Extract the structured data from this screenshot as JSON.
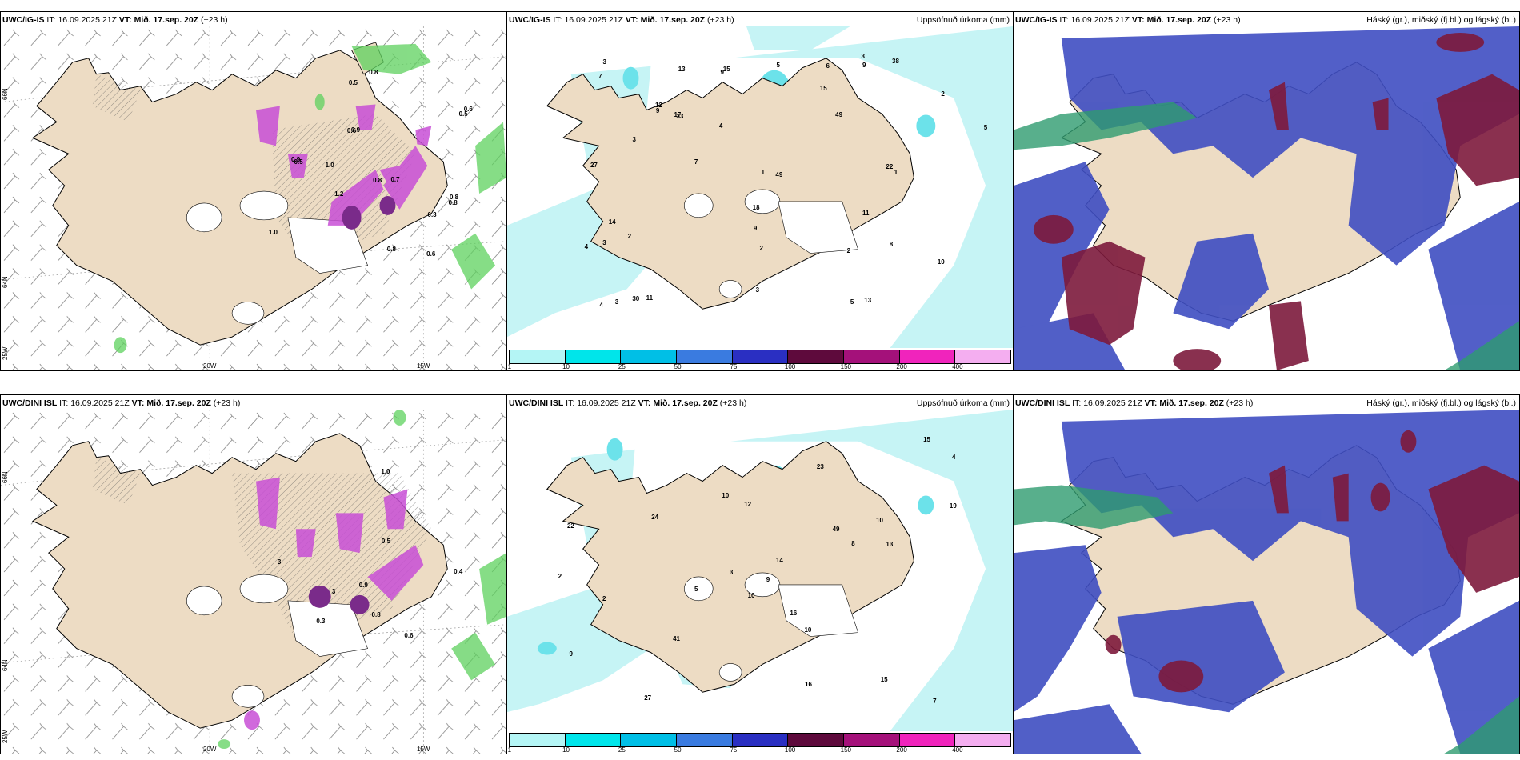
{
  "rows": [
    {
      "model": "UWC/IG-IS",
      "it_label": "IT:",
      "it_value": "16.09.2025 21Z",
      "vt_label": "VT:",
      "vt_value": "Mið. 17.sep. 20Z",
      "lead": "(+23 h)",
      "panels": [
        {
          "right_title": "",
          "values": [
            "0.8",
            "1.0",
            "0.8",
            "1.2",
            "0.9",
            "0.8",
            "0.9",
            "1.0",
            "0.8",
            "0.5",
            "0.3",
            "0.5",
            "0.6",
            "0.6",
            "0.5",
            "0.8",
            "0.6",
            "0.7"
          ]
        },
        {
          "right_title": "Uppsöfnuð úrkoma (mm)",
          "values": [
            "27",
            "9",
            "5",
            "13",
            "14",
            "33",
            "38",
            "49",
            "30",
            "18",
            "13",
            "15",
            "12",
            "22",
            "17",
            "11",
            "9",
            "9",
            "3",
            "11",
            "8",
            "6",
            "7",
            "9",
            "49",
            "10",
            "3",
            "4",
            "5",
            "4",
            "5",
            "3",
            "3",
            "7",
            "2",
            "1",
            "1",
            "15",
            "2",
            "3",
            "3",
            "2",
            "2",
            "4"
          ]
        },
        {
          "right_title": "Háský (gr.), miðský (fj.bl.) og lágský (bl.)",
          "values": []
        }
      ]
    },
    {
      "model": "UWC/DINI ISL",
      "it_label": "IT:",
      "it_value": "16.09.2025 21Z",
      "vt_label": "VT:",
      "vt_value": "Mið. 17.sep. 20Z",
      "lead": "(+23 h)",
      "panels": [
        {
          "right_title": "",
          "values": [
            "0.5",
            "0.4",
            "0.8",
            "1.0",
            "0.9",
            "3",
            "0.6",
            "0.3",
            "3"
          ]
        },
        {
          "right_title": "Uppsöfnuð úrkoma (mm)",
          "values": [
            "24",
            "10",
            "10",
            "4",
            "19",
            "27",
            "41",
            "23",
            "13",
            "15",
            "12",
            "22",
            "16",
            "9",
            "49",
            "10",
            "14",
            "10",
            "16",
            "15",
            "7",
            "8",
            "9",
            "3",
            "2",
            "5",
            "2"
          ]
        },
        {
          "right_title": "Háský (gr.), miðský (fj.bl.) og lágský (bl.)",
          "values": []
        }
      ]
    }
  ],
  "axes": {
    "lat_top": "66N",
    "lat_bottom": "64N",
    "lat_corner": "25W",
    "lon_left": "20W",
    "lon_right": "15W"
  },
  "colorbar": {
    "ticks": [
      "1",
      "10",
      "25",
      "50",
      "75",
      "100",
      "150",
      "200",
      "400"
    ],
    "colors": [
      "#b4f5f5",
      "#00e5ea",
      "#00bfe6",
      "#3a7be0",
      "#2a2fc2",
      "#5e0a3c",
      "#a4117a",
      "#f024bc",
      "#f4aef0"
    ]
  },
  "palette": {
    "land": "#eddcc4",
    "coast": "#000000",
    "precip_light": "#c6f4f5",
    "precip_mid": "#6ce2ea",
    "rain_green": "#5ed15e",
    "snow_magenta": "#c84fd6",
    "cloud_high": "#2e9b6f",
    "cloud_mid": "#4a57c7",
    "cloud_low": "#7d1a3c",
    "cloud_blue": "#3f4ec2"
  }
}
